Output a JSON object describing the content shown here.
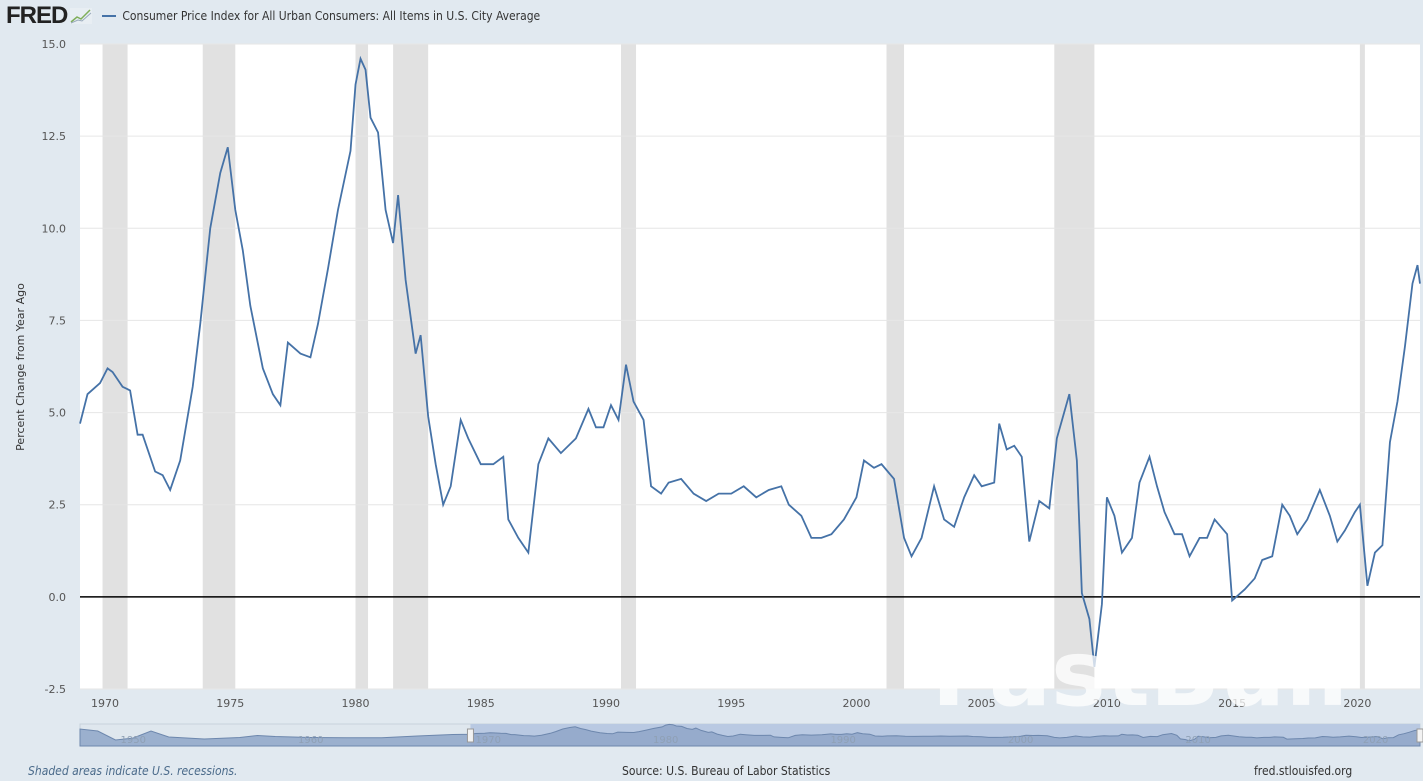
{
  "header": {
    "logo": "FRED",
    "series_title": "Consumer Price Index for All Urban Consumers: All Items in U.S. City Average"
  },
  "footer": {
    "note": "Shaded areas indicate U.S. recessions.",
    "source": "Source: U.S. Bureau of Labor Statistics",
    "site": "fred.stlouisfed.org"
  },
  "watermark": "FastBull",
  "colors": {
    "series": "#4572a7",
    "recession": "#e1e1e1",
    "background": "#e1e9f0",
    "navigator": "#8fa6c8"
  },
  "chart_data": {
    "type": "line",
    "title": "Consumer Price Index for All Urban Consumers: All Items in U.S. City Average",
    "ylabel": "Percent Change from Year Ago",
    "xlabel": "",
    "xlim": [
      1969,
      2022.5
    ],
    "ylim": [
      -2.5,
      15.0
    ],
    "yticks": [
      "-2.5",
      "0.0",
      "2.5",
      "5.0",
      "7.5",
      "10.0",
      "12.5",
      "15.0"
    ],
    "xticks": [
      "1970",
      "1975",
      "1980",
      "1985",
      "1990",
      "1995",
      "2000",
      "2005",
      "2010",
      "2015",
      "2020"
    ],
    "grid": true,
    "legend": "top-left",
    "recessions": [
      [
        1969.9,
        1970.9
      ],
      [
        1973.9,
        1975.2
      ],
      [
        1980.0,
        1980.5
      ],
      [
        1981.5,
        1982.9
      ],
      [
        1990.6,
        1991.2
      ],
      [
        2001.2,
        2001.9
      ],
      [
        2007.9,
        2009.5
      ],
      [
        2020.1,
        2020.3
      ]
    ],
    "series": [
      {
        "name": "Consumer Price Index for All Urban Consumers: All Items in U.S. City Average",
        "x": [
          1969.0,
          1969.3,
          1969.8,
          1970.1,
          1970.3,
          1970.7,
          1971.0,
          1971.3,
          1971.5,
          1972.0,
          1972.3,
          1972.6,
          1973.0,
          1973.5,
          1973.8,
          1974.2,
          1974.6,
          1974.9,
          1975.2,
          1975.5,
          1975.8,
          1976.3,
          1976.7,
          1977.0,
          1977.3,
          1977.8,
          1978.2,
          1978.5,
          1978.9,
          1979.3,
          1979.8,
          1980.0,
          1980.2,
          1980.4,
          1980.6,
          1980.9,
          1981.2,
          1981.5,
          1981.7,
          1982.0,
          1982.4,
          1982.6,
          1982.9,
          1983.2,
          1983.5,
          1983.8,
          1984.2,
          1984.5,
          1985.0,
          1985.5,
          1985.9,
          1986.1,
          1986.5,
          1986.9,
          1987.3,
          1987.7,
          1988.2,
          1988.8,
          1989.3,
          1989.6,
          1989.9,
          1990.2,
          1990.5,
          1990.8,
          1991.1,
          1991.5,
          1991.8,
          1992.2,
          1992.5,
          1993.0,
          1993.5,
          1994.0,
          1994.5,
          1995.0,
          1995.5,
          1996.0,
          1996.5,
          1997.0,
          1997.3,
          1997.8,
          1998.2,
          1998.6,
          1999.0,
          1999.5,
          2000.0,
          2000.3,
          2000.7,
          2001.0,
          2001.5,
          2001.9,
          2002.2,
          2002.6,
          2003.1,
          2003.5,
          2003.9,
          2004.3,
          2004.7,
          2005.0,
          2005.5,
          2005.7,
          2006.0,
          2006.3,
          2006.6,
          2006.9,
          2007.3,
          2007.7,
          2008.0,
          2008.5,
          2008.8,
          2009.0,
          2009.3,
          2009.5,
          2009.8,
          2010.0,
          2010.3,
          2010.6,
          2011.0,
          2011.3,
          2011.7,
          2012.0,
          2012.3,
          2012.7,
          2013.0,
          2013.3,
          2013.7,
          2014.0,
          2014.3,
          2014.8,
          2015.0,
          2015.5,
          2015.9,
          2016.2,
          2016.6,
          2017.0,
          2017.3,
          2017.6,
          2018.0,
          2018.5,
          2018.9,
          2019.2,
          2019.5,
          2019.9,
          2020.1,
          2020.4,
          2020.7,
          2021.0,
          2021.3,
          2021.6,
          2021.9,
          2022.2,
          2022.4,
          2022.5
        ],
        "y": [
          4.7,
          5.5,
          5.8,
          6.2,
          6.1,
          5.7,
          5.6,
          4.4,
          4.4,
          3.4,
          3.3,
          2.9,
          3.7,
          5.7,
          7.4,
          10.0,
          11.5,
          12.2,
          10.5,
          9.4,
          7.9,
          6.2,
          5.5,
          5.2,
          6.9,
          6.6,
          6.5,
          7.4,
          8.9,
          10.5,
          12.1,
          13.9,
          14.6,
          14.3,
          13.0,
          12.6,
          10.5,
          9.6,
          10.9,
          8.6,
          6.6,
          7.1,
          4.9,
          3.6,
          2.5,
          3.0,
          4.8,
          4.3,
          3.6,
          3.6,
          3.8,
          2.1,
          1.6,
          1.2,
          3.6,
          4.3,
          3.9,
          4.3,
          5.1,
          4.6,
          4.6,
          5.2,
          4.8,
          6.3,
          5.3,
          4.8,
          3.0,
          2.8,
          3.1,
          3.2,
          2.8,
          2.6,
          2.8,
          2.8,
          3.0,
          2.7,
          2.9,
          3.0,
          2.5,
          2.2,
          1.6,
          1.6,
          1.7,
          2.1,
          2.7,
          3.7,
          3.5,
          3.6,
          3.2,
          1.6,
          1.1,
          1.6,
          3.0,
          2.1,
          1.9,
          2.7,
          3.3,
          3.0,
          3.1,
          4.7,
          4.0,
          4.1,
          3.8,
          1.5,
          2.6,
          2.4,
          4.3,
          5.5,
          3.7,
          0.1,
          -0.6,
          -1.9,
          -0.2,
          2.7,
          2.2,
          1.2,
          1.6,
          3.1,
          3.8,
          3.0,
          2.3,
          1.7,
          1.7,
          1.1,
          1.6,
          1.6,
          2.1,
          1.7,
          -0.1,
          0.2,
          0.5,
          1.0,
          1.1,
          2.5,
          2.2,
          1.7,
          2.1,
          2.9,
          2.2,
          1.5,
          1.8,
          2.3,
          2.5,
          0.3,
          1.2,
          1.4,
          4.2,
          5.3,
          6.8,
          8.5,
          9.0,
          8.5
        ]
      }
    ],
    "navigator": {
      "xlim": [
        1947,
        2022.5
      ],
      "labels": [
        "1950",
        "1960",
        "1970",
        "1980",
        "1990",
        "2000",
        "2010",
        "2020"
      ],
      "selected_range": [
        1969,
        2022.5
      ],
      "x": [
        1947,
        1948,
        1949,
        1950,
        1951,
        1952,
        1954,
        1956,
        1957,
        1958,
        1960,
        1962,
        1964,
        1966,
        1968
      ],
      "y": [
        10,
        8,
        -1,
        1,
        8,
        2,
        0,
        1.5,
        3.5,
        2.5,
        1.5,
        1.2,
        1.3,
        3,
        4.5
      ]
    }
  }
}
